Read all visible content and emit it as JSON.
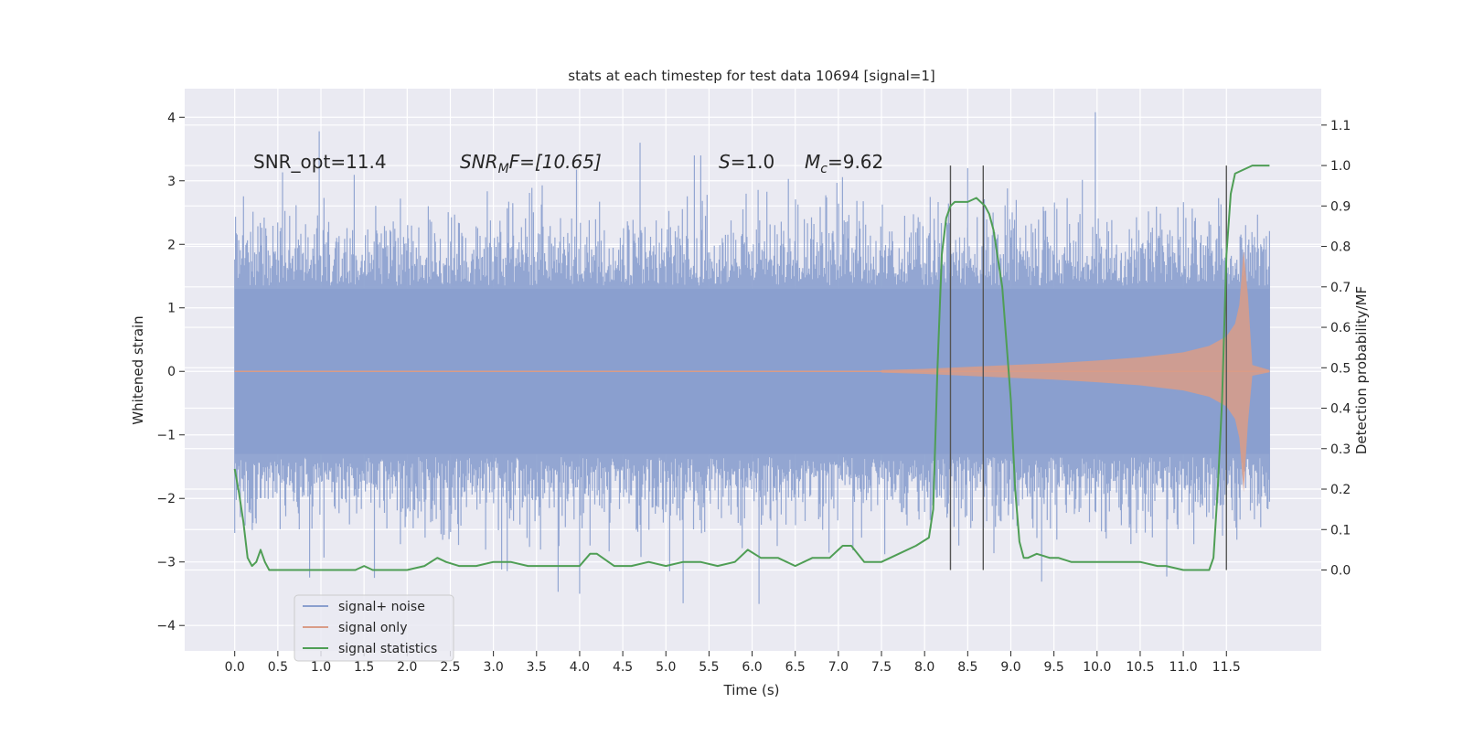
{
  "chart_data": {
    "type": "line",
    "title": "stats at each timestep for test data 10694 [signal=1]",
    "xlabel": "Time (s)",
    "ylabel": "Whitened strain",
    "ylabel_right": "Detection probability/MF",
    "xlim": [
      -0.58,
      12.6
    ],
    "ylim": [
      -4.4,
      4.45
    ],
    "ylim_right": [
      -0.2,
      1.19
    ],
    "x_ticks": [
      0.0,
      0.5,
      1.0,
      1.5,
      2.0,
      2.5,
      3.0,
      3.5,
      4.0,
      4.5,
      5.0,
      5.5,
      6.0,
      6.5,
      7.0,
      7.5,
      8.0,
      8.5,
      9.0,
      9.5,
      10.0,
      10.5,
      11.0,
      11.5
    ],
    "x_tick_labels": [
      "0.0",
      "0.5",
      "1.0",
      "1.5",
      "2.0",
      "2.5",
      "3.0",
      "3.5",
      "4.0",
      "4.5",
      "5.0",
      "5.5",
      "6.0",
      "6.5",
      "7.0",
      "7.5",
      "8.0",
      "8.5",
      "9.0",
      "9.5",
      "10.0",
      "10.5",
      "11.0",
      "11.5"
    ],
    "y_ticks": [
      4,
      3,
      2,
      1,
      0,
      -1,
      -2,
      -3,
      -4
    ],
    "y_tick_labels": [
      "4",
      "3",
      "2",
      "1",
      "0",
      "−1",
      "−2",
      "−3",
      "−4"
    ],
    "y_ticks_right": [
      1.1,
      1.0,
      0.9,
      0.8,
      0.7,
      0.6,
      0.5,
      0.4,
      0.3,
      0.2,
      0.1,
      0.0
    ],
    "y_tick_labels_right": [
      "1.1",
      "1.0",
      "0.9",
      "0.8",
      "0.7",
      "0.6",
      "0.5",
      "0.4",
      "0.3",
      "0.2",
      "0.1",
      "0.0"
    ],
    "grid": true,
    "legend_position": "lower-left",
    "annotations": {
      "snr_opt": "SNR_opt=11.4",
      "snr_mf_main": "SNR",
      "snr_mf_sub": "M",
      "snr_mf_rest": "F=[10.65]",
      "s_var": "S",
      "s_val": "=1.0",
      "mc_var": "M",
      "mc_sub": "c",
      "mc_val": "=9.62"
    },
    "vertical_lines_x": [
      8.3,
      8.68,
      11.5
    ],
    "series": [
      {
        "name": "signal+ noise",
        "axis": "left",
        "color": "#8a9fce",
        "noise_band": [
          -1.3,
          1.3
        ],
        "extreme_range": [
          -3.65,
          4.08
        ]
      },
      {
        "name": "signal only",
        "axis": "left",
        "color": "#d99c87",
        "envelope_x": [
          7.5,
          8.0,
          8.5,
          9.0,
          9.5,
          10.0,
          10.5,
          11.0,
          11.3,
          11.5,
          11.6,
          11.65,
          11.7,
          11.75,
          11.8,
          12.0
        ],
        "envelope_y": [
          0.02,
          0.04,
          0.07,
          0.1,
          0.13,
          0.17,
          0.22,
          0.3,
          0.4,
          0.55,
          0.75,
          1.05,
          1.9,
          1.2,
          0.1,
          0.02
        ]
      },
      {
        "name": "signal statistics",
        "axis": "right",
        "color": "#4f9e55",
        "x": [
          0.0,
          0.05,
          0.1,
          0.15,
          0.2,
          0.25,
          0.3,
          0.35,
          0.4,
          0.5,
          0.6,
          0.8,
          1.0,
          1.2,
          1.4,
          1.5,
          1.6,
          1.8,
          2.0,
          2.2,
          2.35,
          2.45,
          2.6,
          2.8,
          3.0,
          3.2,
          3.4,
          3.6,
          3.8,
          4.0,
          4.12,
          4.2,
          4.4,
          4.6,
          4.8,
          5.0,
          5.2,
          5.4,
          5.6,
          5.8,
          5.95,
          6.1,
          6.3,
          6.5,
          6.7,
          6.9,
          7.05,
          7.15,
          7.3,
          7.5,
          7.7,
          7.9,
          8.05,
          8.1,
          8.15,
          8.2,
          8.25,
          8.3,
          8.35,
          8.4,
          8.5,
          8.6,
          8.7,
          8.75,
          8.8,
          8.9,
          9.0,
          9.05,
          9.1,
          9.15,
          9.2,
          9.3,
          9.45,
          9.55,
          9.7,
          9.9,
          10.1,
          10.3,
          10.5,
          10.7,
          10.8,
          11.0,
          11.2,
          11.3,
          11.35,
          11.4,
          11.45,
          11.5,
          11.55,
          11.6,
          11.7,
          11.8,
          12.0
        ],
        "y": [
          0.25,
          0.19,
          0.12,
          0.03,
          0.01,
          0.02,
          0.05,
          0.02,
          0.0,
          0.0,
          0.0,
          -0.0,
          -0.0,
          0.0,
          -0.0,
          0.01,
          0.0,
          0.0,
          0.0,
          0.01,
          0.03,
          0.02,
          0.01,
          0.01,
          0.02,
          0.02,
          0.01,
          0.01,
          0.01,
          0.01,
          0.04,
          0.04,
          0.01,
          0.01,
          0.02,
          0.01,
          0.02,
          0.02,
          0.01,
          0.02,
          0.05,
          0.03,
          0.03,
          0.01,
          0.03,
          0.03,
          0.06,
          0.06,
          0.02,
          0.02,
          0.04,
          0.06,
          0.08,
          0.15,
          0.5,
          0.78,
          0.87,
          0.9,
          0.91,
          0.91,
          0.91,
          0.92,
          0.9,
          0.88,
          0.84,
          0.7,
          0.42,
          0.2,
          0.07,
          0.03,
          0.03,
          0.04,
          0.03,
          0.03,
          0.02,
          0.02,
          0.02,
          0.02,
          0.02,
          0.01,
          0.01,
          0.0,
          0.0,
          0.0,
          0.03,
          0.2,
          0.42,
          0.78,
          0.93,
          0.98,
          0.99,
          1.0,
          1.0
        ]
      }
    ]
  }
}
